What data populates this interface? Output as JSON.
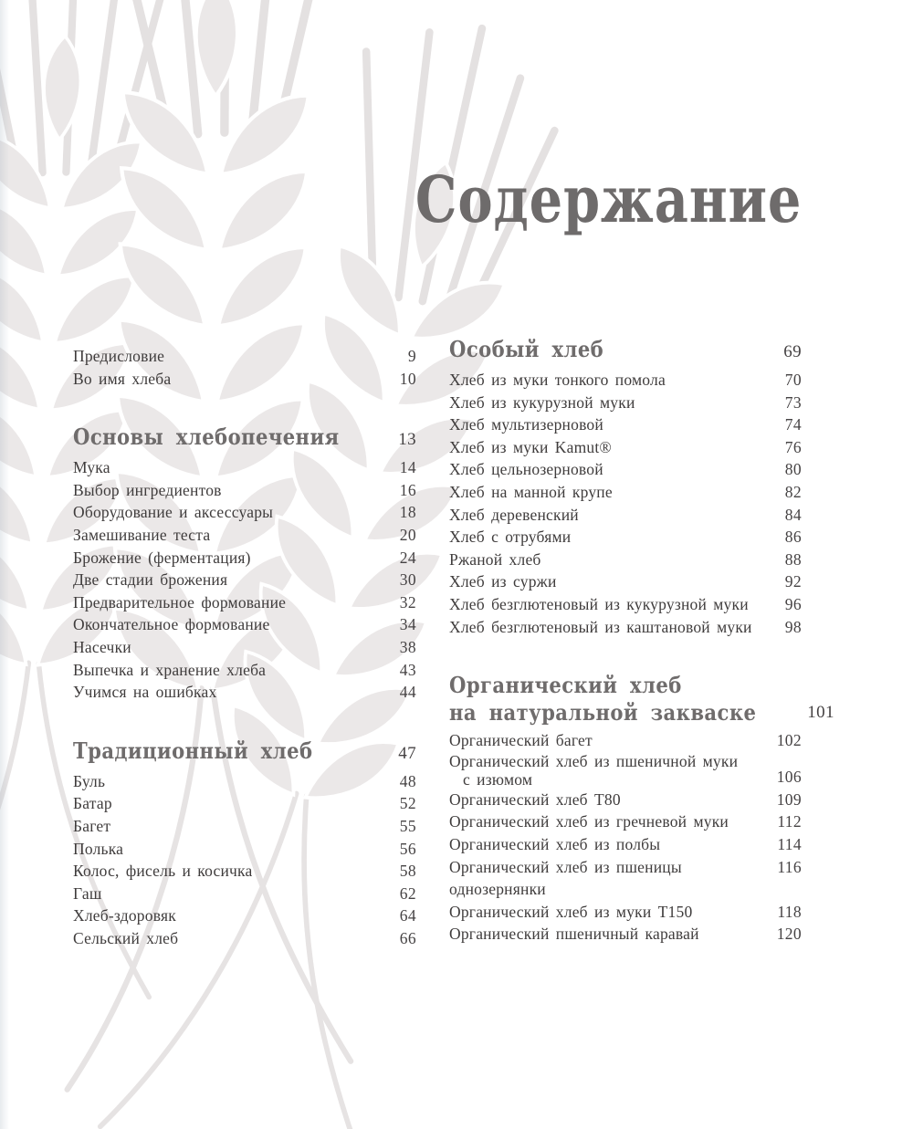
{
  "page": {
    "title": "Содержание",
    "watermark": "wheat-ears",
    "colors": {
      "background": "#ffffff",
      "title": "#6e6b6b",
      "heading": "#6f6c6c",
      "entry_text": "#3f3c3c",
      "page_number": "#454243",
      "watermark_leaf": "#ebe8e8",
      "watermark_stroke": "#e4e1e1"
    }
  },
  "toc": {
    "columns": [
      {
        "name": "left",
        "blocks": [
          {
            "items": [
              {
                "label": "Предисловие",
                "page": "9"
              },
              {
                "label": "Во имя хлеба",
                "page": "10"
              }
            ]
          },
          {
            "heading": {
              "label": "Основы хлебопечения",
              "page": "13"
            },
            "items": [
              {
                "label": "Мука",
                "page": "14"
              },
              {
                "label": "Выбор ингредиентов",
                "page": "16"
              },
              {
                "label": "Оборудование и аксессуары",
                "page": "18"
              },
              {
                "label": "Замешивание теста",
                "page": "20"
              },
              {
                "label": "Брожение (ферментация)",
                "page": "24"
              },
              {
                "label": "Две стадии брожения",
                "page": "30"
              },
              {
                "label": "Предварительное формование",
                "page": "32"
              },
              {
                "label": "Окончательное формование",
                "page": "34"
              },
              {
                "label": "Насечки",
                "page": "38"
              },
              {
                "label": "Выпечка и хранение хлеба",
                "page": "43"
              },
              {
                "label": "Учимся на ошибках",
                "page": "44"
              }
            ]
          },
          {
            "heading": {
              "label": "Традиционный хлеб",
              "page": "47"
            },
            "items": [
              {
                "label": "Буль",
                "page": "48"
              },
              {
                "label": "Батар",
                "page": "52"
              },
              {
                "label": "Багет",
                "page": "55"
              },
              {
                "label": "Полька",
                "page": "56"
              },
              {
                "label": "Колос, фисель и косичка",
                "page": "58"
              },
              {
                "label": "Гаш",
                "page": "62"
              },
              {
                "label": "Хлеб-здоровяк",
                "page": "64"
              },
              {
                "label": "Сельский хлеб",
                "page": "66"
              }
            ]
          }
        ]
      },
      {
        "name": "right",
        "blocks": [
          {
            "heading": {
              "label": "Особый хлеб",
              "page": "69"
            },
            "items": [
              {
                "label": "Хлеб из муки тонкого помола",
                "page": "70"
              },
              {
                "label": "Хлеб из кукурузной муки",
                "page": "73"
              },
              {
                "label": "Хлеб мультизерновой",
                "page": "74"
              },
              {
                "label": "Хлеб из муки Kamut®",
                "page": "76"
              },
              {
                "label": "Хлеб цельнозерновой",
                "page": "80"
              },
              {
                "label": "Хлеб на манной крупе",
                "page": "82"
              },
              {
                "label": "Хлеб деревенский",
                "page": "84"
              },
              {
                "label": "Хлеб с отрубями",
                "page": "86"
              },
              {
                "label": "Ржаной хлеб",
                "page": "88"
              },
              {
                "label": "Хлеб из суржи",
                "page": "92"
              },
              {
                "label": "Хлеб безглютеновый из кукурузной муки",
                "page": "96"
              },
              {
                "label": "Хлеб безглютеновый из каштановой муки",
                "page": "98"
              }
            ]
          },
          {
            "heading": {
              "lines": [
                "Органический хлеб",
                "на натуральной закваске"
              ],
              "page": "101"
            },
            "items": [
              {
                "label": "Органический багет",
                "page": "102"
              },
              {
                "lines": [
                  "Органический хлеб из пшеничной муки",
                  "с изюмом"
                ],
                "indent_last": true,
                "page": "106"
              },
              {
                "label": "Органический хлеб Т80",
                "page": "109"
              },
              {
                "label": "Органический хлеб из гречневой муки",
                "page": "112"
              },
              {
                "label": "Органический хлеб из полбы",
                "page": "114"
              },
              {
                "label": "Органический хлеб из пшеницы однозернянки",
                "page": "116"
              },
              {
                "label": "Органический хлеб из муки Т150",
                "page": "118"
              },
              {
                "label": "Органический пшеничный каравай",
                "page": "120"
              }
            ]
          }
        ]
      }
    ]
  }
}
